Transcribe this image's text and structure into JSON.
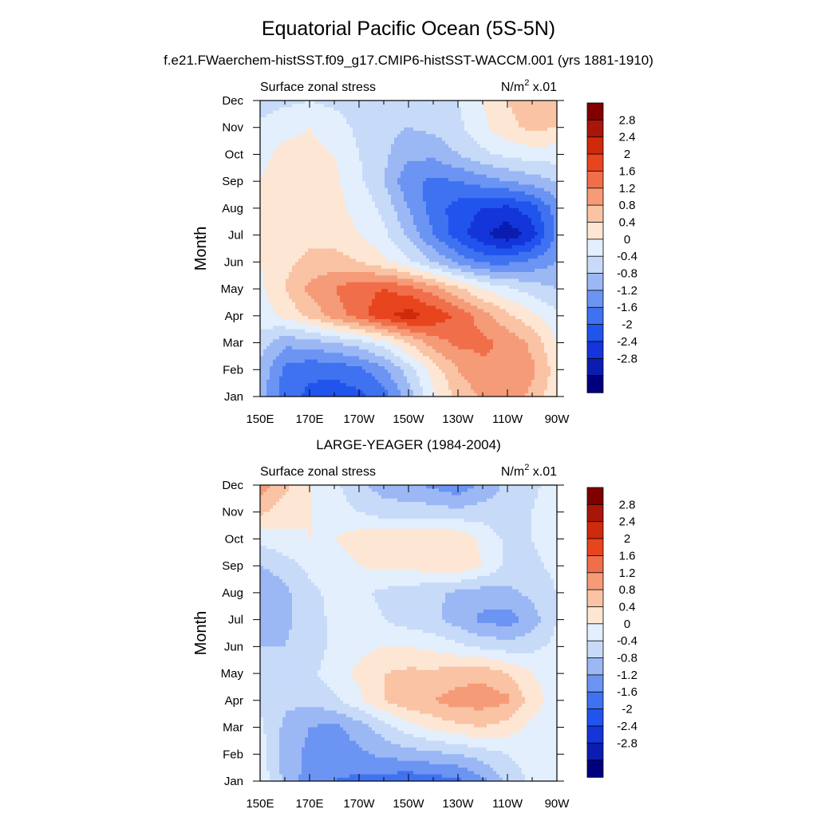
{
  "title": "Equatorial Pacific Ocean (5S-5N)",
  "subtitle": "f.e21.FWaerchem-histSST.f09_g17.CMIP6-histSST-WACCM.001 (yrs 1881-1910)",
  "second_title": "LARGE-YEAGER (1984-2004)",
  "panel_label_left": "Surface zonal stress",
  "units_base": "N/m",
  "units_sup": "2",
  "units_tail": " x.01",
  "chart_data": [
    {
      "type": "heatmap",
      "name": "model",
      "title": "Surface zonal stress",
      "units": "N/m^2 x.01",
      "xlabel": "",
      "ylabel": "Month",
      "xlim": [
        150,
        270
      ],
      "x_tick_values": [
        150,
        170,
        190,
        210,
        230,
        250,
        270
      ],
      "x_tick_labels": [
        "150E",
        "170E",
        "170W",
        "150W",
        "130W",
        "110W",
        "90W"
      ],
      "y_tick_labels": [
        "Jan",
        "Feb",
        "Mar",
        "Apr",
        "May",
        "Jun",
        "Jul",
        "Aug",
        "Sep",
        "Oct",
        "Nov",
        "Dec"
      ],
      "x": [
        150,
        160,
        170,
        180,
        190,
        200,
        210,
        220,
        230,
        240,
        250,
        260,
        270
      ],
      "values": [
        [
          -0.6,
          -1.4,
          -1.7,
          -1.8,
          -1.7,
          -1.4,
          -0.6,
          0.3,
          0.9,
          1.3,
          1.4,
          1.1,
          0.5
        ],
        [
          -0.5,
          -1.3,
          -1.5,
          -1.5,
          -1.3,
          -0.9,
          -0.2,
          0.6,
          1.2,
          1.5,
          1.6,
          1.3,
          0.6
        ],
        [
          -0.2,
          -0.7,
          -0.6,
          -0.4,
          -0.2,
          0.2,
          0.8,
          1.4,
          1.7,
          1.7,
          1.5,
          1.1,
          0.4
        ],
        [
          0.2,
          0.5,
          0.9,
          1.4,
          1.8,
          2.3,
          2.6,
          2.3,
          1.9,
          1.4,
          0.9,
          0.5,
          0.1
        ],
        [
          0.3,
          0.8,
          1.3,
          1.6,
          1.9,
          2.0,
          1.8,
          1.4,
          0.9,
          0.4,
          0.1,
          -0.2,
          -0.4
        ],
        [
          0.4,
          0.7,
          0.9,
          1.0,
          0.8,
          0.5,
          0.1,
          -0.4,
          -0.9,
          -1.3,
          -1.3,
          -1.1,
          -0.8
        ],
        [
          0.4,
          0.6,
          0.7,
          0.6,
          0.4,
          0.1,
          -0.5,
          -1.2,
          -1.8,
          -2.3,
          -2.7,
          -2.2,
          -1.1
        ],
        [
          0.5,
          0.6,
          0.6,
          0.5,
          0.3,
          -0.1,
          -0.8,
          -1.4,
          -1.8,
          -2.0,
          -2.1,
          -1.8,
          -1.0
        ],
        [
          0.4,
          0.6,
          0.6,
          0.5,
          0.1,
          -0.4,
          -1.1,
          -1.3,
          -1.2,
          -1.0,
          -0.8,
          -0.6,
          -0.4
        ],
        [
          0.3,
          0.5,
          0.5,
          0.4,
          0.0,
          -0.3,
          -0.7,
          -0.7,
          -0.4,
          -0.1,
          0.1,
          0.2,
          0.2
        ],
        [
          0.1,
          0.3,
          0.4,
          0.2,
          -0.1,
          -0.3,
          -0.4,
          -0.3,
          -0.1,
          0.3,
          0.7,
          0.9,
          0.8
        ],
        [
          -0.2,
          -0.1,
          0.0,
          -0.1,
          -0.2,
          -0.3,
          -0.3,
          -0.2,
          0.0,
          0.4,
          0.8,
          1.0,
          0.9
        ]
      ]
    },
    {
      "type": "heatmap",
      "name": "observations",
      "title": "Surface zonal stress",
      "units": "N/m^2 x.01",
      "xlabel": "",
      "ylabel": "Month",
      "xlim": [
        150,
        270
      ],
      "x_tick_values": [
        150,
        170,
        190,
        210,
        230,
        250,
        270
      ],
      "x_tick_labels": [
        "150E",
        "170E",
        "170W",
        "150W",
        "130W",
        "110W",
        "90W"
      ],
      "y_tick_labels": [
        "Jan",
        "Feb",
        "Mar",
        "Apr",
        "May",
        "Jun",
        "Jul",
        "Aug",
        "Sep",
        "Oct",
        "Nov",
        "Dec"
      ],
      "x": [
        150,
        160,
        170,
        180,
        190,
        200,
        210,
        220,
        230,
        240,
        250,
        260,
        270
      ],
      "values": [
        [
          0.3,
          -0.5,
          -1.0,
          -1.2,
          -1.3,
          -1.4,
          -1.5,
          -1.4,
          -1.3,
          -0.9,
          -0.3,
          0.1,
          0.3
        ],
        [
          0.2,
          -0.6,
          -0.9,
          -1.0,
          -0.9,
          -0.7,
          -0.6,
          -0.5,
          -0.4,
          -0.2,
          0.0,
          0.2,
          0.3
        ],
        [
          0.1,
          -0.5,
          -0.8,
          -0.9,
          -0.6,
          -0.2,
          0.2,
          0.5,
          0.7,
          0.8,
          0.6,
          0.3,
          0.2
        ],
        [
          -0.1,
          -0.3,
          -0.3,
          -0.1,
          0.3,
          0.8,
          1.1,
          1.2,
          1.4,
          1.4,
          1.3,
          0.6,
          0.2
        ],
        [
          -0.2,
          -0.3,
          -0.1,
          0.2,
          0.5,
          0.8,
          0.9,
          0.9,
          1.0,
          1.1,
          0.8,
          0.4,
          0.2
        ],
        [
          -0.4,
          -0.4,
          -0.2,
          0.1,
          0.3,
          0.4,
          0.4,
          0.3,
          0.1,
          -0.1,
          -0.2,
          -0.1,
          0.1
        ],
        [
          -0.6,
          -0.5,
          -0.2,
          0.1,
          0.2,
          0.0,
          -0.2,
          -0.3,
          -0.6,
          -0.9,
          -1.0,
          -0.6,
          0.0
        ],
        [
          -0.8,
          -0.5,
          -0.1,
          0.1,
          0.1,
          -0.1,
          -0.2,
          -0.3,
          -0.5,
          -0.6,
          -0.5,
          -0.3,
          0.0
        ],
        [
          -0.4,
          -0.2,
          0.1,
          0.2,
          0.4,
          0.5,
          0.5,
          0.6,
          0.7,
          0.4,
          -0.1,
          -0.1,
          0.1
        ],
        [
          0.1,
          0.3,
          0.4,
          0.4,
          0.6,
          0.7,
          0.7,
          0.8,
          0.7,
          0.3,
          -0.1,
          0.0,
          0.2
        ],
        [
          0.9,
          0.6,
          0.4,
          0.2,
          0.0,
          -0.2,
          -0.2,
          -0.2,
          -0.3,
          -0.2,
          -0.3,
          0.0,
          0.3
        ],
        [
          1.4,
          0.9,
          0.4,
          0.1,
          -0.3,
          -0.6,
          -0.7,
          -0.9,
          -1.1,
          -0.7,
          -0.3,
          -0.1,
          0.2
        ]
      ]
    }
  ],
  "colorbar": {
    "labels": [
      "2.8",
      "2.4",
      "2",
      "1.6",
      "1.2",
      "0.8",
      "0.4",
      "0",
      "-0.4",
      "-0.8",
      "-1.2",
      "-1.6",
      "-2",
      "-2.4",
      "-2.8"
    ],
    "levels": [
      -2.8,
      -2.4,
      -2.0,
      -1.6,
      -1.2,
      -0.8,
      -0.4,
      0,
      0.4,
      0.8,
      1.2,
      1.6,
      2.0,
      2.4,
      2.8
    ],
    "colors": [
      "#00007f",
      "#0b1db0",
      "#1335d9",
      "#2154ed",
      "#3f72f1",
      "#6b94f3",
      "#9bb8f5",
      "#c7dbf9",
      "#e3effc",
      "#fde6d4",
      "#f9c3a4",
      "#f59b78",
      "#f06f4a",
      "#e8451f",
      "#cf2a0c",
      "#a8160a",
      "#800000"
    ]
  }
}
